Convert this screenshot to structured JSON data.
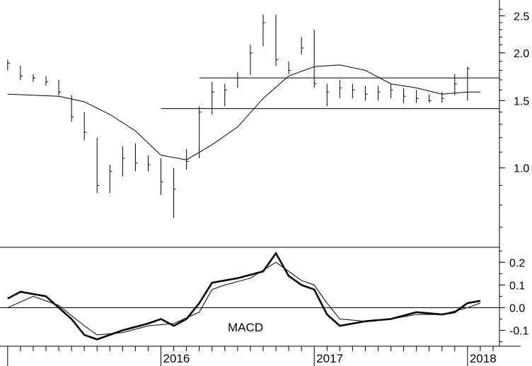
{
  "chart_data": [
    {
      "type": "ohlc",
      "panel": "price",
      "scale": "log",
      "ylim": [
        0.62,
        2.75
      ],
      "yticks": [
        {
          "value": 2.5,
          "label": "2.5"
        },
        {
          "value": 2.0,
          "label": "2.0"
        },
        {
          "value": 1.5,
          "label": "1.5"
        },
        {
          "value": 1.0,
          "label": "1.0"
        }
      ],
      "horizontal_lines": [
        {
          "value": 1.72,
          "from": "2016-04",
          "to": "2018-03"
        },
        {
          "value": 1.43,
          "from": "2016-01",
          "to": "2018-03"
        }
      ],
      "moving_average": [
        [
          "2015-01",
          1.56
        ],
        [
          "2015-05",
          1.54
        ],
        [
          "2015-07",
          1.49
        ],
        [
          "2015-09",
          1.38
        ],
        [
          "2015-11",
          1.25
        ],
        [
          "2016-01",
          1.08
        ],
        [
          "2016-03",
          1.05
        ],
        [
          "2016-05",
          1.15
        ],
        [
          "2016-07",
          1.28
        ],
        [
          "2016-09",
          1.52
        ],
        [
          "2016-11",
          1.74
        ],
        [
          "2017-01",
          1.84
        ],
        [
          "2017-03",
          1.86
        ],
        [
          "2017-05",
          1.8
        ],
        [
          "2017-07",
          1.66
        ],
        [
          "2017-09",
          1.62
        ],
        [
          "2017-11",
          1.56
        ],
        [
          "2018-01",
          1.58
        ],
        [
          "2018-02",
          1.58
        ]
      ],
      "bars_hlc": [
        [
          "2015-01",
          1.92,
          1.8,
          1.88
        ],
        [
          "2015-02",
          1.85,
          1.7,
          1.74
        ],
        [
          "2015-03",
          1.76,
          1.68,
          1.72
        ],
        [
          "2015-04",
          1.74,
          1.64,
          1.68
        ],
        [
          "2015-05",
          1.7,
          1.55,
          1.58
        ],
        [
          "2015-06",
          1.55,
          1.32,
          1.36
        ],
        [
          "2015-07",
          1.4,
          1.18,
          1.24
        ],
        [
          "2015-08",
          1.2,
          0.86,
          0.9
        ],
        [
          "2015-09",
          1.02,
          0.86,
          0.98
        ],
        [
          "2015-10",
          1.14,
          0.95,
          1.06
        ],
        [
          "2015-11",
          1.16,
          0.98,
          1.03
        ],
        [
          "2015-12",
          1.08,
          0.98,
          1.02
        ],
        [
          "2016-01",
          1.06,
          0.85,
          0.92
        ],
        [
          "2016-02",
          1.0,
          0.74,
          0.88
        ],
        [
          "2016-03",
          1.12,
          0.99,
          1.04
        ],
        [
          "2016-04",
          1.45,
          1.06,
          1.4
        ],
        [
          "2016-05",
          1.68,
          1.38,
          1.58
        ],
        [
          "2016-06",
          1.66,
          1.45,
          1.6
        ],
        [
          "2016-07",
          1.78,
          1.62,
          1.72
        ],
        [
          "2016-08",
          2.1,
          1.75,
          2.0
        ],
        [
          "2016-09",
          2.52,
          2.08,
          2.4
        ],
        [
          "2016-10",
          2.52,
          1.85,
          1.92
        ],
        [
          "2016-11",
          1.9,
          1.76,
          1.8
        ],
        [
          "2016-12",
          2.2,
          1.98,
          2.06
        ],
        [
          "2017-01",
          2.3,
          1.62,
          1.66
        ],
        [
          "2017-02",
          1.66,
          1.45,
          1.58
        ],
        [
          "2017-03",
          1.7,
          1.52,
          1.62
        ],
        [
          "2017-04",
          1.66,
          1.52,
          1.6
        ],
        [
          "2017-05",
          1.64,
          1.5,
          1.56
        ],
        [
          "2017-06",
          1.64,
          1.5,
          1.58
        ],
        [
          "2017-07",
          1.66,
          1.52,
          1.6
        ],
        [
          "2017-08",
          1.62,
          1.48,
          1.54
        ],
        [
          "2017-09",
          1.6,
          1.48,
          1.52
        ],
        [
          "2017-10",
          1.56,
          1.48,
          1.5
        ],
        [
          "2017-11",
          1.58,
          1.48,
          1.52
        ],
        [
          "2017-12",
          1.76,
          1.55,
          1.66
        ],
        [
          "2018-01",
          1.84,
          1.5,
          1.82
        ]
      ]
    },
    {
      "type": "line",
      "panel": "macd",
      "title": "MACD",
      "ylim": [
        -0.17,
        0.26
      ],
      "yticks": [
        {
          "value": 0.2,
          "label": "0.2"
        },
        {
          "value": 0.1,
          "label": "0.1"
        },
        {
          "value": 0.0,
          "label": "0.0"
        },
        {
          "value": -0.1,
          "label": "-0.1"
        }
      ],
      "series": [
        {
          "style": "thick",
          "points": [
            [
              "2015-01",
              0.04
            ],
            [
              "2015-02",
              0.07
            ],
            [
              "2015-04",
              0.05
            ],
            [
              "2015-06",
              -0.05
            ],
            [
              "2015-07",
              -0.12
            ],
            [
              "2015-08",
              -0.14
            ],
            [
              "2015-10",
              -0.1
            ],
            [
              "2015-12",
              -0.07
            ],
            [
              "2016-01",
              -0.05
            ],
            [
              "2016-02",
              -0.08
            ],
            [
              "2016-03",
              -0.05
            ],
            [
              "2016-04",
              0.02
            ],
            [
              "2016-05",
              0.11
            ],
            [
              "2016-06",
              0.12
            ],
            [
              "2016-07",
              0.13
            ],
            [
              "2016-09",
              0.16
            ],
            [
              "2016-10",
              0.24
            ],
            [
              "2016-11",
              0.14
            ],
            [
              "2016-12",
              0.1
            ],
            [
              "2017-01",
              0.08
            ],
            [
              "2017-02",
              -0.03
            ],
            [
              "2017-03",
              -0.08
            ],
            [
              "2017-05",
              -0.06
            ],
            [
              "2017-07",
              -0.05
            ],
            [
              "2017-09",
              -0.02
            ],
            [
              "2017-11",
              -0.03
            ],
            [
              "2017-12",
              -0.02
            ],
            [
              "2018-01",
              0.02
            ],
            [
              "2018-02",
              0.03
            ]
          ]
        },
        {
          "style": "thin",
          "points": [
            [
              "2015-01",
              0.0
            ],
            [
              "2015-03",
              0.05
            ],
            [
              "2015-05",
              0.01
            ],
            [
              "2015-07",
              -0.08
            ],
            [
              "2015-08",
              -0.12
            ],
            [
              "2015-10",
              -0.11
            ],
            [
              "2015-12",
              -0.08
            ],
            [
              "2016-02",
              -0.07
            ],
            [
              "2016-04",
              -0.02
            ],
            [
              "2016-05",
              0.08
            ],
            [
              "2016-06",
              0.1
            ],
            [
              "2016-08",
              0.13
            ],
            [
              "2016-10",
              0.2
            ],
            [
              "2016-11",
              0.16
            ],
            [
              "2016-12",
              0.12
            ],
            [
              "2017-01",
              0.1
            ],
            [
              "2017-02",
              0.02
            ],
            [
              "2017-03",
              -0.05
            ],
            [
              "2017-05",
              -0.06
            ],
            [
              "2017-07",
              -0.05
            ],
            [
              "2017-09",
              -0.03
            ],
            [
              "2017-11",
              -0.03
            ],
            [
              "2018-01",
              0.0
            ],
            [
              "2018-02",
              0.02
            ]
          ]
        }
      ]
    }
  ],
  "x_axis": {
    "year_labels": [
      {
        "date": "2016-01",
        "label": "2016"
      },
      {
        "date": "2017-01",
        "label": "2017"
      },
      {
        "date": "2018-01",
        "label": "2018"
      }
    ],
    "range": [
      "2015-01",
      "2018-03"
    ]
  },
  "style": {
    "line_color": "#000000",
    "background": "#ffffff"
  }
}
